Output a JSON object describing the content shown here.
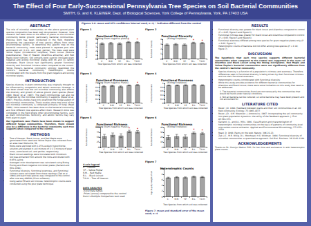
{
  "header": {
    "title": "The Effect of Four Early-Successional Pennsylvania Tree Species on Soil Bacterial Communities",
    "authors": "SMITH, G. and K. KLEINER, Dept. of Biological Sciences, York College of Pennsylvania, York, PA 17403 USA"
  },
  "abstract": {
    "heading": "ABSTRACT",
    "text": "The role of microbial communities on the above ground plant species composition has been well documented. However, little research has been done on the effect of plants on the microbial community below ground, particularly bacterial communities. Previous work has been conducted in the field, therefore preventing the separation of tree species effects from other environmental factors. To determine the specific tree on the bacterial community, trees were planted in separate pots with autoclaved soil (1:2:1, soil, peat, perlite). The trees used were Yellow Poplar (Liriodendron tulipifera), Black Locust (Robinia pseudoacacia), Tree of Heaven (Ailanthus altissima), and Red Maple (Acer rubrum). Soil extracts were used to inoculate gram negative and ecolog microtiter plates with 95 and 31 carbon substrates. Black Locust had significantly greater functional diversity and functional richness when compared to the control. Yellow Poplar's bacterial community strongly resembled the control's bacterial community. Heterotrophic counts corroborated with the results from the gram negative and ecolog microtiter plates."
  },
  "introduction": {
    "heading": "INTRODUCTION",
    "text": "Species diversity in plant communities was originally thought to be influenced by competition and abiotic resources. However, it has been shown that the soil microbial community also affects the diversity and growth of above ground plant species (Bever 1994; Bever et al. 1997). The plant communities can also be influenced by the microbial community it supports (Bever et al. 1997). Previous studies have only examined the fungal aspect of the microbial communities. These studies show that most of the soil microbial community is composed primarily of fungi (Read 1998). Little research has been done on the bacterial community and how different tree species affect them. Research done was completed in the field where other environmental factors, such as plant communities, herbivory, and abiotic factors may vary from plant to plant.",
    "hypothesis": "Our hypothesis was: Plants have been shown to support different fungal communities. Therefore, there should also be a difference in the bacterial community each tree supports when compared to the control."
  },
  "methods": {
    "heading": "METHODS",
    "bullets": [
      "Tree of Heaven, Black Locust, and Red Maple were germinated from seed and Yellow Poplar was collected from an area near Wellsville, PA.",
      "Roots were sterilized with 1.25% sodium hypochlorite solution and planted in soil mixture of 2:1:1 mixture of peat moss, autoclaved soil, and perlite, respectively.",
      "Black Locust seedlings were inoculated with rhizobium.",
      "Soil was extracted from around the roots and diluted with 0.85% saline.",
      "Averaged color development was calculated using Biolog Ecolog and Gram negative microtiter plates (Garland and Mills 1991).",
      "Functional diversity, functional evenness, and functional richness were calculated from these readings (Zak et al. 1994) and each tree species was compared to the control after one way ANOVA (Prism software).",
      "Using same IFB and soil inocula, heterotrophic counts were conducted using the pour plate technique."
    ]
  },
  "figures_caption": "Figures 1-6- mean and 95% confidence interval used; n=4; * indicates different from the control",
  "chart_data": [
    {
      "type": "bar",
      "figure_label": "Figure 1",
      "title": "Functional Diversity",
      "subtitle": "(Biolog Gram negative plates)",
      "xlabel": "Tree Species from which soil was collected",
      "ylabel": "Functional Diversity",
      "categories": [
        "C.",
        "R.M.",
        "Y.P.",
        "B.L.",
        "T.O.H."
      ],
      "values": [
        3.9,
        4.0,
        3.9,
        4.3,
        4.25
      ],
      "errors": [
        0.2,
        0.2,
        0.2,
        0.15,
        0.15
      ],
      "annotations": [
        {
          "category": "B.L.",
          "text": "*"
        },
        {
          "category": "T.O.H.",
          "text": "*"
        }
      ],
      "ylim": [
        0,
        5
      ],
      "yticks": [
        0,
        1,
        2,
        3,
        4,
        5
      ],
      "color": "#a3a3a3",
      "grid": false
    },
    {
      "type": "bar",
      "figure_label": "Figure 2",
      "title": "Functional Diversity",
      "subtitle": "(Biolog Ecoplates)",
      "xlabel": "Tree Species from which soil was collected",
      "ylabel": "Functional Diversity",
      "categories": [
        "C.",
        "R.M.",
        "Y.P.",
        "B.L.",
        "T.O.H."
      ],
      "values": [
        2.9,
        3.0,
        2.9,
        3.3,
        3.25
      ],
      "errors": [
        0.15,
        0.15,
        0.15,
        0.1,
        0.1
      ],
      "annotations": [
        {
          "category": "B.L.",
          "text": "*"
        },
        {
          "category": "T.O.H.",
          "text": "*"
        }
      ],
      "ylim": [
        0,
        4
      ],
      "yticks": [
        0,
        1,
        2,
        3,
        4
      ],
      "color": "#a3a3a3",
      "grid": false
    },
    {
      "type": "bar",
      "figure_label": "Figure 3",
      "title": "Functional Evenness",
      "subtitle": "(Biolog Gram-negative Plates)",
      "xlabel": "Tree Species from which soil was collected",
      "ylabel": "Functional Evenness",
      "categories": [
        "C.",
        "R.M.",
        "Y.P.",
        "B.L.",
        "T.O.H."
      ],
      "values": [
        0.85,
        0.88,
        0.84,
        0.9,
        0.92
      ],
      "errors": [
        0.03,
        0.03,
        0.03,
        0.02,
        0.02
      ],
      "annotations": [
        {
          "category": "T.O.H.",
          "text": "*"
        }
      ],
      "ylim": [
        0,
        1
      ],
      "yticks": [
        0,
        0.2,
        0.4,
        0.6,
        0.8,
        1
      ],
      "color": "#a3a3a3",
      "grid": false
    },
    {
      "type": "bar",
      "figure_label": "Figure 4",
      "title": "Functional Evenness",
      "subtitle": "(Biolog Ecoplates)",
      "xlabel": "Tree Species from which soil was collected",
      "ylabel": "Functional Evenness",
      "categories": [
        "C.",
        "R.M.",
        "Y.P.",
        "B.L.",
        "T.O.H."
      ],
      "values": [
        0.9,
        0.9,
        0.91,
        0.92,
        0.91
      ],
      "errors": [
        0.02,
        0.02,
        0.02,
        0.02,
        0.02
      ],
      "annotations": [],
      "ylim": [
        0,
        1
      ],
      "yticks": [
        0,
        0.2,
        0.4,
        0.6,
        0.8,
        1
      ],
      "color": "#a3a3a3",
      "grid": false
    },
    {
      "type": "bar",
      "figure_label": "Figure 5",
      "title": "Functional Richness",
      "subtitle": "(Biolog Gram-negative Plates)",
      "xlabel": "Tree Species from which soil was collected",
      "ylabel": "Functional Richness",
      "categories": [
        "C.",
        "R.M.",
        "Y.P.",
        "B.L.",
        "T.O.H."
      ],
      "values": [
        55,
        62,
        58,
        80,
        78
      ],
      "errors": [
        10,
        10,
        10,
        6,
        6
      ],
      "annotations": [
        {
          "category": "B.L.",
          "text": "*"
        },
        {
          "category": "T.O.H.",
          "text": "*"
        }
      ],
      "ylim": [
        0,
        100
      ],
      "yticks": [
        0,
        25,
        50,
        75,
        100
      ],
      "color": "#a3a3a3",
      "grid": false
    },
    {
      "type": "bar",
      "figure_label": "Figure 6",
      "title": "Functional Richness",
      "subtitle": "(Biolog Ecoplates)",
      "xlabel": "Tree Species from which soil was collected",
      "ylabel": "Functional Richness",
      "categories": [
        "C.",
        "R.M.",
        "Y.P.",
        "B.L.",
        "T.O.H."
      ],
      "values": [
        20,
        22,
        21,
        29,
        28
      ],
      "errors": [
        4,
        4,
        4,
        2,
        2
      ],
      "annotations": [
        {
          "category": "B.L.",
          "text": "*"
        },
        {
          "category": "T.O.H.",
          "text": "*"
        }
      ],
      "ylim": [
        0,
        40
      ],
      "yticks": [
        0,
        10,
        20,
        30,
        40
      ],
      "color": "#a3a3a3",
      "grid": false
    },
    {
      "type": "bar",
      "figure_label": "Figure 7",
      "title": "Heterotrophic Counts",
      "xlabel": "Tree Species from which soil was collected",
      "ylabel": "log cfu/g dry weight of soil",
      "categories": [
        "C.",
        "R.M.",
        "Y.P.",
        "B.L.",
        "T.O.H."
      ],
      "values": [
        6.8,
        7.0,
        6.9,
        7.2,
        7.1
      ],
      "errors": [
        0.2,
        0.2,
        0.2,
        0.2,
        0.2
      ],
      "annotations": [],
      "ylim": [
        0,
        10
      ],
      "yticks": [
        0,
        2,
        4,
        6,
        8,
        10
      ],
      "color": "#a3a3a3",
      "grid": false,
      "caption": "Figure 7- mean and standard error of the mean used; n=4"
    }
  ],
  "xaxis_legend": {
    "heading": "X-axis legend",
    "items": [
      "C. - Control",
      "Y.P. - Yellow Poplar",
      "R.M. - Red Maple",
      "B.L. - Black Locust",
      "T.O.H. - Tree of Heaven"
    ]
  },
  "data_analysis": {
    "heading": "DATA ANALYSIS",
    "items": [
      "-Excel data tables",
      "-Prism (anova) compared to the control",
      "Dunn's Multiple Comparison test used"
    ]
  },
  "results": {
    "heading": "RESULTS",
    "bullets": [
      "Functional diversity was greater for black locust and Ailanthus compared to control (P < 0.05; figure 1 and figure 2).",
      "Functional richness was greater for black locust and Ailanthus compared to control (P < 0.05; figure 5 and figure 6).",
      "Functional evenness differed among tree species for gram negative plates only (P < 0.02; figure 3).",
      "Heterotrophic counts of bacteria did not differ among tree species (P > 0.10; figure 7)."
    ]
  },
  "discussion": {
    "heading": "DISCUSSION",
    "summary": "The hypothesis that each tree species supports different bacterial communities when compared to the control was supported in the cases of Ailanthus and Black Locust using the Biolog microplates. Red Maple and Yellow Poplar's bacterial communities were not significantly different from the control's bacterial community.",
    "bullets": [
      "Species diversity is a function of a population's richness and evenness. Therefore, differences seen in functional diversity is being driven by their functional richness and not their functional evenness.",
      "Heterotrophic counts corroborated with functional diversity.",
      "While this study provides evidence for different bacterial communities for Ailanthus and Black Locust, there were some limitations to this study that need to be addressed."
    ],
    "limitations": [
      "1. The bacterial communities found are not necessarily the communities that would be found under natural conditions.",
      "2. Not all bacteria can be cultured, so some bacteria may have been present and not accounted for."
    ]
  },
  "literature_cited": {
    "heading": "LITERATURE CITED",
    "items": [
      "Bever, J.D. 1994. Feedback between plants and their soil communities in an old field community. Ecology. 75:1965-1977.",
      "Bever, J.D., K.M. Westover, J. Antonovics. 1997. Incorporating the soil community into plant population dynamics: the utility of the feedback approach. J. Ecol. 85:561-573.",
      "Garland, J.L. and A.L. Mills. 1991. Classification and characterization of heterotrophic microbial communities on the basis of patterns of community-level sole-carbon-source utilization. Applied and Environmental Microbiology. 57:2351-2359.",
      "Read, D. 1998. Plants on the web. Nature. 396:22-23.",
      "Zak, J.C., M.R. Willig, D.L. Moorhead, H.G. Wildman. 1994. Functional diversity of microbial communities: a quantitative approach. Soil Biol. Biochem. 26:1101-1108."
    ]
  },
  "acknowledgements": {
    "heading": "ACKNOWLEDGEMENTS",
    "text": "Thanks to Dr. Carolyn Mathur PhD, for her time and assistance in with heterotrophic plate counts."
  }
}
